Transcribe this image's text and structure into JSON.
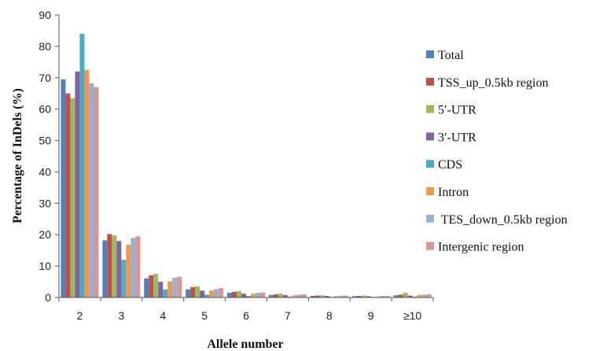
{
  "chart_data": {
    "type": "bar",
    "title": "",
    "xlabel": "Allele number",
    "ylabel": "Percentage of InDels  (%)",
    "ylim": [
      0,
      90
    ],
    "yticks": [
      0,
      10,
      20,
      30,
      40,
      50,
      60,
      70,
      80,
      90
    ],
    "grid": false,
    "legend_position": "right",
    "categories": [
      "2",
      "3",
      "4",
      "5",
      "6",
      "7",
      "8",
      "9",
      "≥10"
    ],
    "series": [
      {
        "name": "Total",
        "color": "#4f81bd",
        "values": [
          69.5,
          18.2,
          6.1,
          2.6,
          1.5,
          0.8,
          0.5,
          0.4,
          0.7
        ]
      },
      {
        "name": "TSS_up_0.5kb region",
        "color": "#c0504d",
        "values": [
          65.0,
          20.2,
          7.1,
          3.3,
          1.8,
          1.0,
          0.6,
          0.5,
          0.9
        ]
      },
      {
        "name": "5′-UTR",
        "color": "#9bbb59",
        "values": [
          63.5,
          19.8,
          7.5,
          3.5,
          2.0,
          1.2,
          0.7,
          0.6,
          1.5
        ]
      },
      {
        "name": "3′-UTR",
        "color": "#8064a2",
        "values": [
          72.0,
          18.0,
          5.0,
          2.2,
          1.2,
          0.8,
          0.5,
          0.4,
          0.6
        ]
      },
      {
        "name": "CDS",
        "color": "#4bacc6",
        "values": [
          84.0,
          12.0,
          2.6,
          0.9,
          0.5,
          0.3,
          0.2,
          0.2,
          0.3
        ]
      },
      {
        "name": "Intron",
        "color": "#f79646",
        "values": [
          72.5,
          16.8,
          5.1,
          2.2,
          1.2,
          0.7,
          0.4,
          0.3,
          0.8
        ]
      },
      {
        "name": " TES_down_0.5kb region",
        "color": "#95b3d7",
        "values": [
          68.2,
          19.0,
          6.3,
          2.7,
          1.5,
          0.9,
          0.6,
          0.5,
          0.9
        ]
      },
      {
        "name": "Intergenic region",
        "color": "#d99694",
        "values": [
          67.0,
          19.5,
          6.6,
          3.0,
          1.6,
          1.0,
          0.6,
          0.5,
          1.0
        ]
      }
    ]
  }
}
